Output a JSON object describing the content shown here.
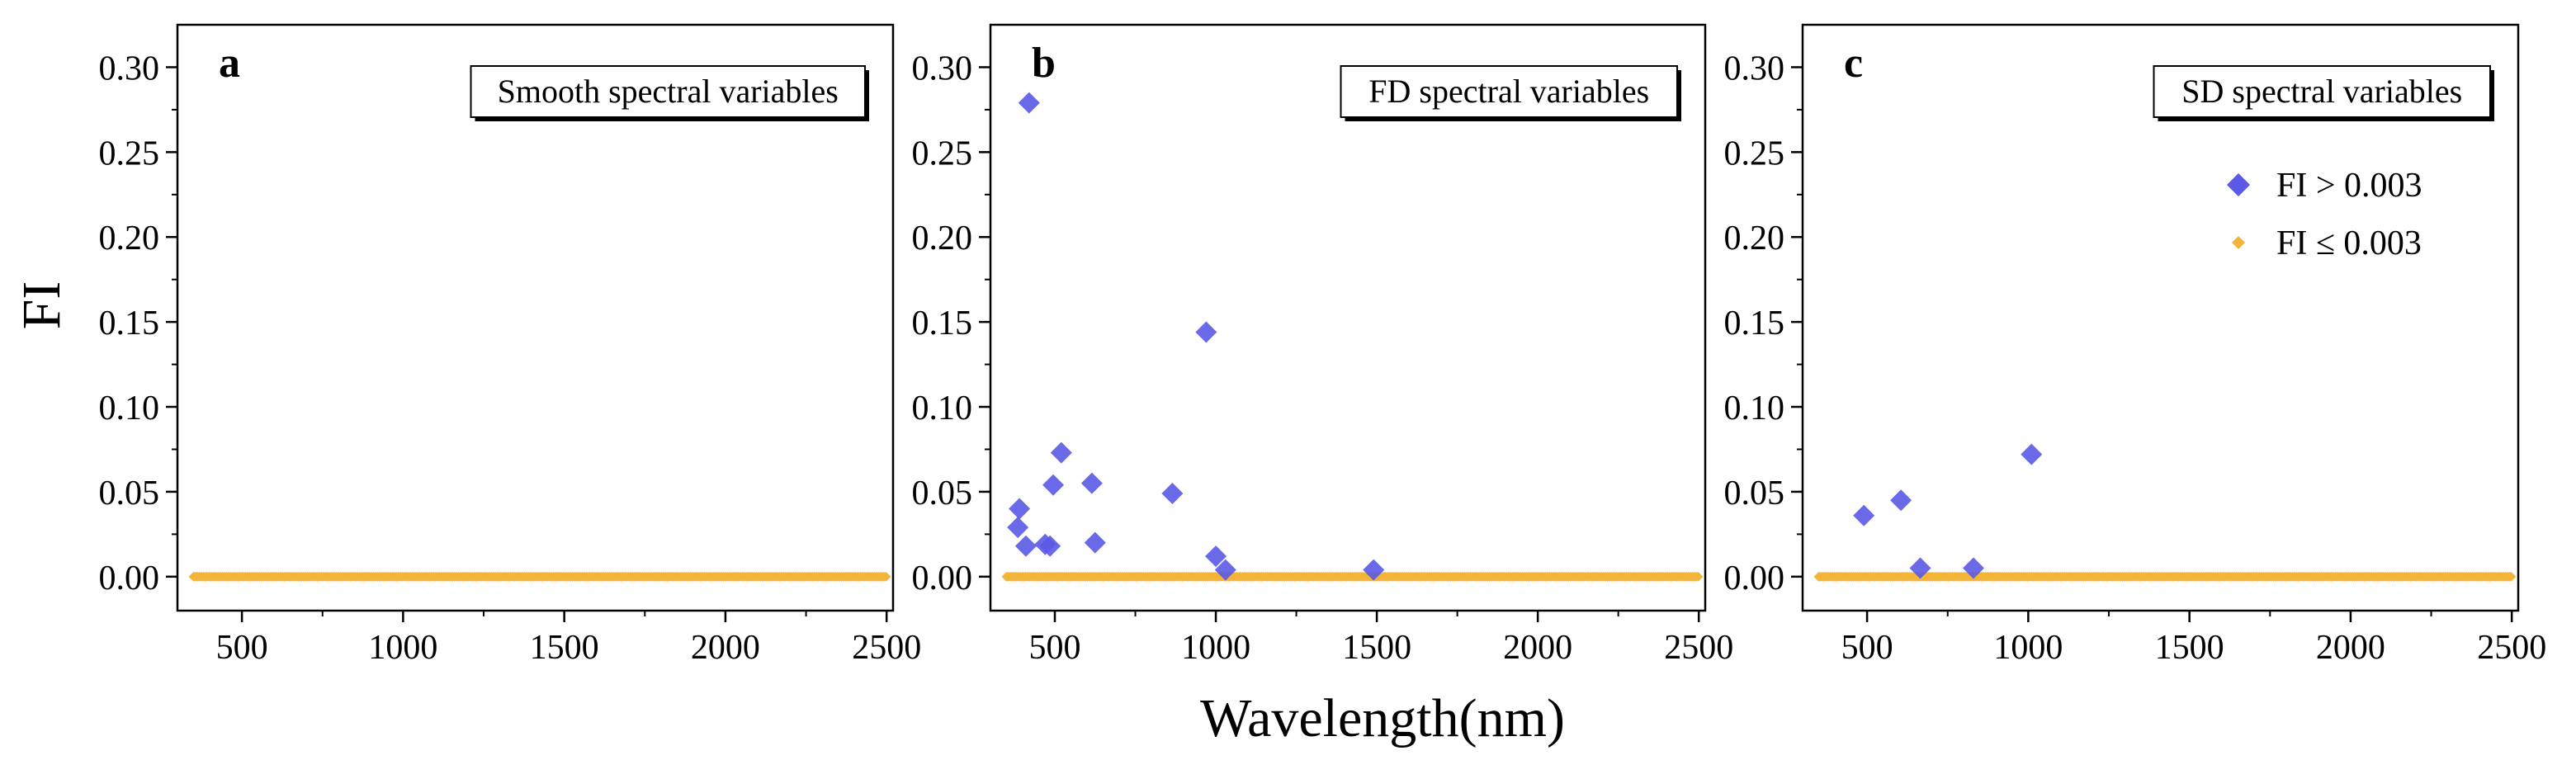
{
  "figure": {
    "y_axis_title": "FI",
    "x_axis_title": "Wavelength(nm)"
  },
  "colors": {
    "high": "#5a5ae6",
    "low": "#f2b53a"
  },
  "legend": {
    "items": [
      {
        "label": "FI > 0.003",
        "marker": "diamond",
        "color": "#5a5ae6"
      },
      {
        "label": "FI ≤ 0.003",
        "marker": "small-diamond",
        "color": "#f2b53a"
      }
    ]
  },
  "chart_data": [
    {
      "type": "scatter",
      "letter": "a",
      "title": "Smooth spectral variables",
      "xlim": [
        300,
        2520
      ],
      "ylim": [
        -0.02,
        0.325
      ],
      "xticks": [
        500,
        1000,
        1500,
        2000,
        2500
      ],
      "yticks": [
        "0.00",
        "0.05",
        "0.10",
        "0.15",
        "0.20",
        "0.25",
        "0.30"
      ],
      "low_range": [
        350,
        2500
      ],
      "high_points": []
    },
    {
      "type": "scatter",
      "letter": "b",
      "title": "FD spectral variables",
      "xlim": [
        300,
        2520
      ],
      "ylim": [
        -0.02,
        0.325
      ],
      "xticks": [
        500,
        1000,
        1500,
        2000,
        2500
      ],
      "yticks": [
        "0.00",
        "0.05",
        "0.10",
        "0.15",
        "0.20",
        "0.25",
        "0.30"
      ],
      "low_range": [
        350,
        2500
      ],
      "high_points": [
        [
          420,
          0.279
        ],
        [
          390,
          0.04
        ],
        [
          385,
          0.029
        ],
        [
          410,
          0.018
        ],
        [
          470,
          0.019
        ],
        [
          485,
          0.018
        ],
        [
          495,
          0.054
        ],
        [
          520,
          0.073
        ],
        [
          615,
          0.055
        ],
        [
          625,
          0.02
        ],
        [
          865,
          0.049
        ],
        [
          970,
          0.144
        ],
        [
          1000,
          0.012
        ],
        [
          1030,
          0.004
        ],
        [
          1490,
          0.004
        ]
      ]
    },
    {
      "type": "scatter",
      "letter": "c",
      "title": "SD spectral variables",
      "xlim": [
        300,
        2520
      ],
      "ylim": [
        -0.02,
        0.325
      ],
      "xticks": [
        500,
        1000,
        1500,
        2000,
        2500
      ],
      "yticks": [
        "0.00",
        "0.05",
        "0.10",
        "0.15",
        "0.20",
        "0.25",
        "0.30"
      ],
      "low_range": [
        350,
        2500
      ],
      "high_points": [
        [
          490,
          0.036
        ],
        [
          605,
          0.045
        ],
        [
          665,
          0.005
        ],
        [
          830,
          0.005
        ],
        [
          1010,
          0.072
        ]
      ]
    }
  ]
}
